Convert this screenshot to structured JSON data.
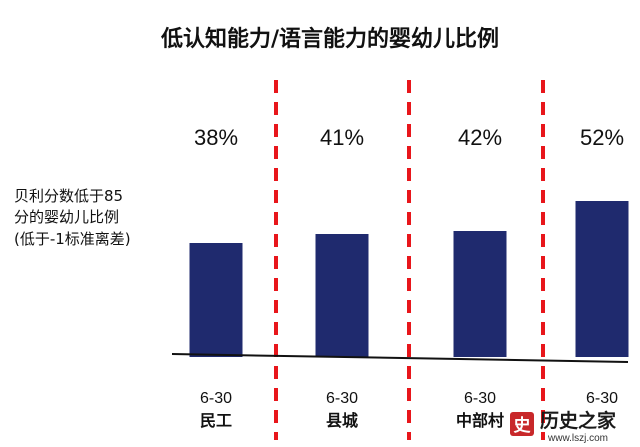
{
  "chart_data": {
    "type": "bar",
    "title": "低认知能力/语言能力的婴幼儿比例",
    "ylabel_lines": [
      "贝利分数低于85",
      "分的婴幼儿比例",
      "(低于-1标准离差)"
    ],
    "categories": [
      {
        "age": "6-30",
        "group": "民工"
      },
      {
        "age": "6-30",
        "group": "县城"
      },
      {
        "age": "6-30",
        "group": "中部村"
      },
      {
        "age": "6-30",
        "group": ""
      }
    ],
    "values": [
      38,
      41,
      42,
      52
    ],
    "value_labels": [
      "38%",
      "41%",
      "42%",
      "52%"
    ],
    "ylim": [
      0,
      100
    ],
    "grid": false,
    "legend": "none",
    "colors": {
      "bar": "#1f2a6e",
      "separator": "#e8161b",
      "axis": "#111111"
    }
  },
  "watermark": {
    "text": "历史之家",
    "url": "www.lszj.com",
    "seal_char": "史",
    "seal_color": "#c8282a"
  }
}
